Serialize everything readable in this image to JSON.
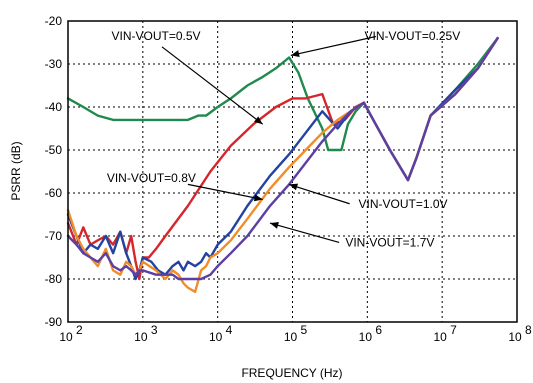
{
  "chart_data": {
    "type": "line",
    "xlabel": "FREQUENCY (Hz)",
    "ylabel": "PSRR (dB)",
    "xscale": "log",
    "xlim": [
      100,
      100000000
    ],
    "ylim": [
      -90,
      -20
    ],
    "xticks": [
      {
        "value": 100,
        "base": "10",
        "exp": "2"
      },
      {
        "value": 1000,
        "base": "10",
        "exp": "3"
      },
      {
        "value": 10000,
        "base": "10",
        "exp": "4"
      },
      {
        "value": 100000,
        "base": "10",
        "exp": "5"
      },
      {
        "value": 1000000,
        "base": "10",
        "exp": "6"
      },
      {
        "value": 10000000,
        "base": "10",
        "exp": "7"
      },
      {
        "value": 100000000,
        "base": "10",
        "exp": "8"
      }
    ],
    "yticks": [
      -20,
      -30,
      -40,
      -50,
      -60,
      -70,
      -80,
      -90
    ],
    "grid": true,
    "series": [
      {
        "name": "VIN-VOUT=0.25V",
        "color": "#1f8a4c",
        "points": [
          [
            100,
            -38
          ],
          [
            160,
            -40
          ],
          [
            250,
            -42
          ],
          [
            400,
            -43
          ],
          [
            1000,
            -43
          ],
          [
            2000,
            -43
          ],
          [
            4000,
            -43
          ],
          [
            5500,
            -42
          ],
          [
            7000,
            -42
          ],
          [
            10000,
            -40
          ],
          [
            15000,
            -38
          ],
          [
            25000,
            -35
          ],
          [
            40000,
            -33
          ],
          [
            60000,
            -31
          ],
          [
            90000,
            -28.5
          ],
          [
            120000,
            -32
          ],
          [
            160000,
            -38
          ],
          [
            250000,
            -45
          ],
          [
            300000,
            -50
          ],
          [
            450000,
            -50
          ],
          [
            550000,
            -44
          ],
          [
            700000,
            -41
          ],
          [
            900000,
            -39
          ],
          [
            1200000,
            -43
          ],
          [
            2000000,
            -50
          ],
          [
            3500000,
            -57
          ],
          [
            4500000,
            -52
          ],
          [
            7000000,
            -42
          ],
          [
            15000000,
            -36
          ],
          [
            30000000,
            -30
          ],
          [
            55000000,
            -24
          ]
        ]
      },
      {
        "name": "VIN-VOUT=0.5V",
        "color": "#d6262b",
        "points": [
          [
            100,
            -67
          ],
          [
            130,
            -72
          ],
          [
            160,
            -68
          ],
          [
            200,
            -72
          ],
          [
            250,
            -71
          ],
          [
            320,
            -70
          ],
          [
            400,
            -72
          ],
          [
            500,
            -69
          ],
          [
            600,
            -74
          ],
          [
            700,
            -70
          ],
          [
            800,
            -76
          ],
          [
            900,
            -80
          ],
          [
            1000,
            -75
          ],
          [
            1200,
            -75
          ],
          [
            1500,
            -73
          ],
          [
            2000,
            -70
          ],
          [
            4000,
            -63
          ],
          [
            8000,
            -55
          ],
          [
            15000,
            -49
          ],
          [
            30000,
            -44
          ],
          [
            60000,
            -40
          ],
          [
            100000,
            -38
          ],
          [
            150000,
            -38
          ],
          [
            250000,
            -37
          ],
          [
            350000,
            -44
          ],
          [
            500000,
            -43
          ],
          [
            700000,
            -40
          ],
          [
            900000,
            -39
          ],
          [
            1200000,
            -43
          ],
          [
            2000000,
            -50
          ],
          [
            3500000,
            -57
          ],
          [
            4500000,
            -52
          ],
          [
            7000000,
            -42
          ],
          [
            15000000,
            -37
          ],
          [
            30000000,
            -31
          ],
          [
            55000000,
            -24
          ]
        ]
      },
      {
        "name": "VIN-VOUT=0.8V",
        "color": "#2243a0",
        "points": [
          [
            100,
            -65
          ],
          [
            130,
            -70
          ],
          [
            160,
            -74
          ],
          [
            200,
            -72
          ],
          [
            250,
            -73
          ],
          [
            320,
            -70
          ],
          [
            400,
            -74
          ],
          [
            500,
            -69
          ],
          [
            600,
            -74
          ],
          [
            700,
            -77
          ],
          [
            800,
            -80
          ],
          [
            900,
            -78
          ],
          [
            1000,
            -75
          ],
          [
            1300,
            -76
          ],
          [
            1600,
            -78
          ],
          [
            2000,
            -79
          ],
          [
            2500,
            -77
          ],
          [
            3000,
            -76
          ],
          [
            3500,
            -78
          ],
          [
            4000,
            -76
          ],
          [
            5000,
            -77
          ],
          [
            6000,
            -76
          ],
          [
            7000,
            -74
          ],
          [
            8000,
            -75
          ],
          [
            10000,
            -72
          ],
          [
            15000,
            -69
          ],
          [
            25000,
            -63
          ],
          [
            50000,
            -56
          ],
          [
            90000,
            -51
          ],
          [
            150000,
            -46
          ],
          [
            250000,
            -41
          ],
          [
            400000,
            -45
          ],
          [
            600000,
            -41
          ],
          [
            900000,
            -39
          ],
          [
            1200000,
            -43
          ],
          [
            2000000,
            -50
          ],
          [
            3500000,
            -57
          ],
          [
            4500000,
            -52
          ],
          [
            7000000,
            -42
          ],
          [
            15000000,
            -36
          ],
          [
            30000000,
            -31
          ],
          [
            55000000,
            -24
          ]
        ]
      },
      {
        "name": "VIN-VOUT=1.0V",
        "color": "#f28c28",
        "points": [
          [
            100,
            -64
          ],
          [
            130,
            -70
          ],
          [
            160,
            -73
          ],
          [
            200,
            -75
          ],
          [
            250,
            -77
          ],
          [
            320,
            -73
          ],
          [
            400,
            -78
          ],
          [
            500,
            -79
          ],
          [
            600,
            -76
          ],
          [
            700,
            -77
          ],
          [
            800,
            -79
          ],
          [
            900,
            -78
          ],
          [
            1000,
            -76
          ],
          [
            1500,
            -78
          ],
          [
            2000,
            -80
          ],
          [
            2500,
            -78
          ],
          [
            3000,
            -79
          ],
          [
            3500,
            -81
          ],
          [
            4000,
            -82
          ],
          [
            5000,
            -83
          ],
          [
            6000,
            -78
          ],
          [
            7000,
            -77
          ],
          [
            8000,
            -75
          ],
          [
            10000,
            -74
          ],
          [
            15000,
            -71
          ],
          [
            25000,
            -66
          ],
          [
            50000,
            -59
          ],
          [
            90000,
            -54
          ],
          [
            150000,
            -50
          ],
          [
            250000,
            -46
          ],
          [
            400000,
            -43
          ],
          [
            600000,
            -41
          ],
          [
            900000,
            -39
          ],
          [
            1200000,
            -43
          ],
          [
            2000000,
            -50
          ],
          [
            3500000,
            -57
          ],
          [
            4500000,
            -52
          ],
          [
            7000000,
            -42
          ],
          [
            15000000,
            -37
          ],
          [
            30000000,
            -31
          ],
          [
            55000000,
            -24
          ]
        ]
      },
      {
        "name": "VIN-VOUT=1.7V",
        "color": "#5b3fa5",
        "points": [
          [
            100,
            -70
          ],
          [
            130,
            -72
          ],
          [
            160,
            -74
          ],
          [
            200,
            -75
          ],
          [
            250,
            -76
          ],
          [
            320,
            -74
          ],
          [
            400,
            -77
          ],
          [
            500,
            -78
          ],
          [
            600,
            -77
          ],
          [
            700,
            -78
          ],
          [
            800,
            -79
          ],
          [
            900,
            -78
          ],
          [
            1000,
            -78
          ],
          [
            1500,
            -79
          ],
          [
            2000,
            -79
          ],
          [
            2500,
            -79
          ],
          [
            3000,
            -80
          ],
          [
            4000,
            -80
          ],
          [
            5000,
            -80
          ],
          [
            6000,
            -80
          ],
          [
            8000,
            -79
          ],
          [
            10000,
            -77
          ],
          [
            15000,
            -74
          ],
          [
            25000,
            -70
          ],
          [
            50000,
            -63
          ],
          [
            90000,
            -58
          ],
          [
            150000,
            -53
          ],
          [
            250000,
            -48
          ],
          [
            400000,
            -44
          ],
          [
            600000,
            -41
          ],
          [
            900000,
            -39
          ],
          [
            1200000,
            -43
          ],
          [
            2000000,
            -50
          ],
          [
            3500000,
            -57
          ],
          [
            4500000,
            -52
          ],
          [
            7000000,
            -42
          ],
          [
            15000000,
            -37
          ],
          [
            30000000,
            -31
          ],
          [
            55000000,
            -24
          ]
        ]
      }
    ],
    "annotations": [
      {
        "text": "VIN-VOUT=0.5V",
        "series": "VIN-VOUT=0.5V",
        "label_at": [
          1500,
          -23.5
        ],
        "anchor": "middle",
        "arrow_from": [
          1800,
          -26
        ],
        "arrow_to": [
          40000,
          -44
        ]
      },
      {
        "text": "VIN-VOUT=0.25V",
        "series": "VIN-VOUT=0.25V",
        "label_at": [
          4000000,
          -23.5
        ],
        "anchor": "middle",
        "arrow_from": [
          1300000,
          -23.6
        ],
        "arrow_to": [
          95000,
          -28
        ]
      },
      {
        "text": "VIN-VOUT=0.8V",
        "series": "VIN-VOUT=0.8V",
        "label_at": [
          1300,
          -56.5
        ],
        "anchor": "middle",
        "arrow_from": [
          4000,
          -58
        ],
        "arrow_to": [
          40000,
          -61.5
        ]
      },
      {
        "text": "VIN-VOUT=1.0V",
        "series": "VIN-VOUT=1.0V",
        "label_at": [
          3000000,
          -62.5
        ],
        "anchor": "middle",
        "arrow_from": [
          580000,
          -62.5
        ],
        "arrow_to": [
          90000,
          -58
        ]
      },
      {
        "text": "VIN-VOUT=1.7V",
        "series": "VIN-VOUT=1.7V",
        "label_at": [
          2000000,
          -71.5
        ],
        "anchor": "middle",
        "arrow_from": [
          420000,
          -71.5
        ],
        "arrow_to": [
          50000,
          -67
        ]
      }
    ]
  }
}
